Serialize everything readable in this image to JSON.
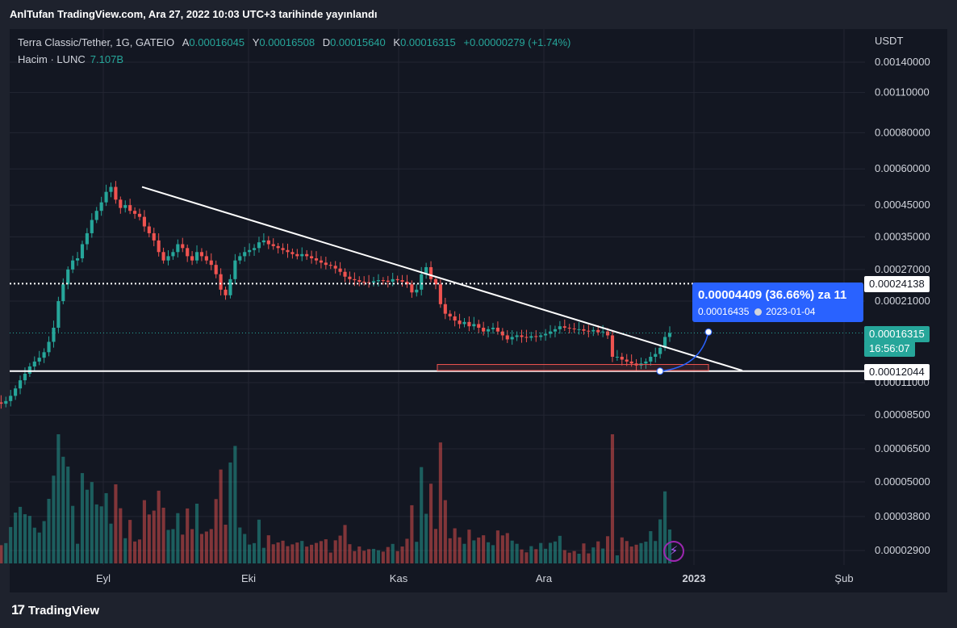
{
  "header": {
    "published": "AnlTufan TradingView.com, Ara 27, 2022 10:03 UTC+3 tarihinde yayınlandı"
  },
  "legend": {
    "symbol": "Terra Classic/Tether, 1G, GATEIO",
    "open_label": "A",
    "open": "0.00016045",
    "high_label": "Y",
    "high": "0.00016508",
    "low_label": "D",
    "low": "0.00015640",
    "close_label": "K",
    "close": "0.00016315",
    "change": "+0.00000279 (+1.74%)",
    "volume_label": "Hacim · LUNC",
    "volume": "7.107B"
  },
  "price_tags": {
    "resistance": "0.00024138",
    "last_price": "0.00016315",
    "countdown": "16:56:07",
    "support": "0.00012044"
  },
  "measure": {
    "line1": "0.00004409 (36.66%) za 11",
    "target_price": "0.00016435",
    "target_date": "2023-01-04"
  },
  "footer": {
    "logo": "17",
    "brand": "TradingView"
  },
  "colors": {
    "up": "#26a69a",
    "down": "#ef5350",
    "background": "#131722",
    "accent": "#2962ff"
  },
  "chart_data": {
    "type": "candlestick",
    "symbol": "Terra Classic/Tether",
    "interval": "1G",
    "exchange": "GATEIO",
    "scale": "log",
    "y_unit": "USDT",
    "y_ticks": [
      0.0014,
      0.0011,
      0.0008,
      0.0006,
      0.00045,
      0.00035,
      0.00027,
      0.00021,
      0.00011,
      8.5e-05,
      6.5e-05,
      5e-05,
      3.8e-05,
      2.9e-05
    ],
    "y_tick_labels": [
      "0.00140000",
      "0.00110000",
      "0.00080000",
      "0.00060000",
      "0.00045000",
      "0.00035000",
      "0.00027000",
      "0.00021000",
      "0.00011000",
      "0.00008500",
      "0.00006500",
      "0.00005000",
      "0.00003800",
      "0.00002900"
    ],
    "x_tick_labels": [
      "Eyl",
      "Eki",
      "Kas",
      "Ara",
      "2023",
      "Şub"
    ],
    "x_tick_dates": [
      "2022-09-01",
      "2022-10-01",
      "2022-11-01",
      "2022-12-01",
      "2023-01-01",
      "2023-02-01"
    ],
    "date_range": [
      "2022-08-03",
      "2022-12-27"
    ],
    "horizontal_levels": [
      0.00024138,
      0.00012044
    ],
    "last_price": 0.00016315,
    "trendline": {
      "from": [
        "2022-09-09",
        0.00052
      ],
      "to": [
        "2023-01-11",
        0.000121
      ]
    },
    "demand_zone": {
      "from": "2022-11-09",
      "to": "2023-01-04",
      "low": 0.000121,
      "high": 0.000127
    },
    "projection": {
      "from": [
        "2022-12-25",
        0.00012044
      ],
      "to": [
        "2023-01-04",
        0.00016435
      ]
    },
    "close_series": [
      0.000102,
      0.000103,
      0.0001,
      0.000101,
      9.8e-05,
      9.7e-05,
      9.5e-05,
      9.4e-05,
      9.3e-05,
      9.5e-05,
      9.9e-05,
      0.000105,
      0.000112,
      0.000118,
      0.000125,
      0.00013,
      0.000134,
      0.00014,
      0.000152,
      0.00017,
      0.00021,
      0.00024,
      0.00027,
      0.00029,
      0.000295,
      0.00033,
      0.00036,
      0.0004,
      0.00043,
      0.00046,
      0.0005,
      0.00052,
      0.00047,
      0.00044,
      0.00045,
      0.00043,
      0.00042,
      0.00041,
      0.00038,
      0.00036,
      0.00034,
      0.00031,
      0.00029,
      0.0003,
      0.00031,
      0.00033,
      0.00032,
      0.0003,
      0.00029,
      0.00031,
      0.0003,
      0.00029,
      0.00028,
      0.00026,
      0.00023,
      0.00022,
      0.00025,
      0.00029,
      0.0003,
      0.00031,
      0.000315,
      0.00032,
      0.000335,
      0.00034,
      0.00033,
      0.000325,
      0.00032,
      0.000315,
      0.00031,
      0.000305,
      0.0003,
      0.000305,
      0.0003,
      0.000295,
      0.00029,
      0.000285,
      0.00028,
      0.000278,
      0.000272,
      0.000265,
      0.000255,
      0.00025,
      0.000248,
      0.000245,
      0.000244,
      0.000243,
      0.000246,
      0.000248,
      0.000247,
      0.000245,
      0.00025,
      0.000248,
      0.000245,
      0.00024,
      0.000225,
      0.00023,
      0.00026,
      0.000275,
      0.00025,
      0.00024,
      0.000205,
      0.00019,
      0.000186,
      0.00018,
      0.000175,
      0.000178,
      0.000172,
      0.000175,
      0.00017,
      0.000165,
      0.000168,
      0.00017,
      0.000165,
      0.00016,
      0.000155,
      0.000158,
      0.00016,
      0.000158,
      0.000157,
      0.000159,
      0.000158,
      0.00016,
      0.000162,
      0.000165,
      0.000168,
      0.000172,
      0.00017,
      0.000169,
      0.000168,
      0.000168,
      0.000166,
      0.000165,
      0.000167,
      0.000164,
      0.000165,
      0.00016,
      0.000135,
      0.000135,
      0.000132,
      0.00013,
      0.000128,
      0.000126,
      0.000128,
      0.00013,
      0.000135,
      0.000138,
      0.000145,
      0.000158,
      0.000163
    ]
  }
}
